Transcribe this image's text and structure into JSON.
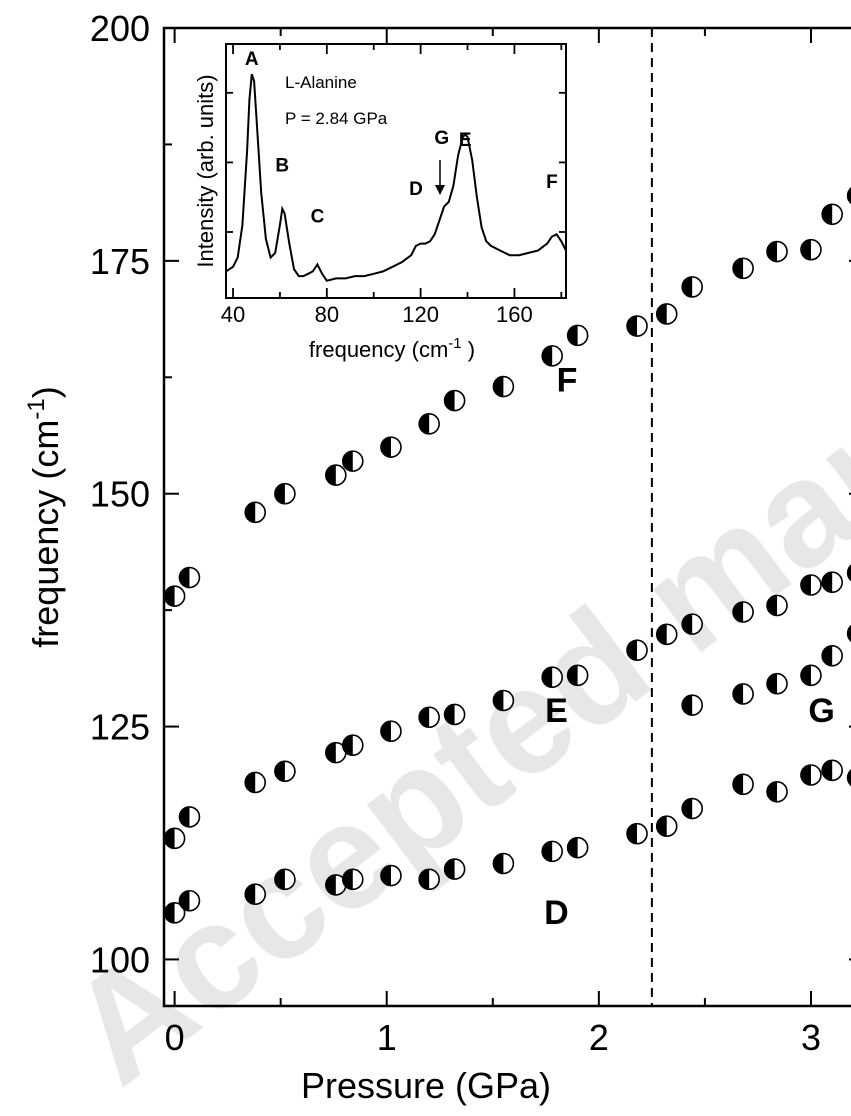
{
  "watermark": "Accepted manuscript",
  "chart_data": [
    {
      "type": "scatter",
      "xlabel": "Pressure (GPa)",
      "ylabel": "frequency (cm-1)",
      "ylabel_main": "frequency (cm",
      "ylabel_sup": "-1",
      "ylabel_close": ")",
      "xlim": [
        -0.05,
        3.25
      ],
      "ylim": [
        95,
        200
      ],
      "x_ticks": [
        0,
        1,
        2,
        3
      ],
      "y_ticks": [
        100,
        125,
        150,
        175,
        200
      ],
      "x_tick_labels": [
        "0",
        "1",
        "2",
        "3"
      ],
      "y_tick_labels": [
        "100",
        "125",
        "150",
        "175",
        "200"
      ],
      "marker": "half-filled circle",
      "phase_boundary_x": 2.25,
      "series": [
        {
          "name": "F",
          "points": [
            [
              0.0,
              139
            ],
            [
              0.07,
              141
            ],
            [
              0.38,
              148
            ],
            [
              0.52,
              150
            ],
            [
              0.76,
              152
            ],
            [
              0.84,
              153.5
            ],
            [
              1.02,
              155
            ],
            [
              1.2,
              157.5
            ],
            [
              1.32,
              160
            ],
            [
              1.55,
              161.5
            ],
            [
              1.78,
              164.8
            ],
            [
              1.9,
              167
            ],
            [
              2.18,
              168
            ],
            [
              2.32,
              169.3
            ],
            [
              2.44,
              172.2
            ],
            [
              2.68,
              174.2
            ],
            [
              2.84,
              176
            ],
            [
              3.0,
              176.2
            ],
            [
              3.1,
              180
            ],
            [
              3.22,
              182
            ]
          ]
        },
        {
          "name": "E",
          "points": [
            [
              0.0,
              113
            ],
            [
              0.07,
              115.3
            ],
            [
              0.38,
              119
            ],
            [
              0.52,
              120.2
            ],
            [
              0.76,
              122.2
            ],
            [
              0.84,
              123
            ],
            [
              1.02,
              124.5
            ],
            [
              1.2,
              126
            ],
            [
              1.32,
              126.3
            ],
            [
              1.55,
              127.8
            ],
            [
              1.78,
              130.3
            ],
            [
              1.9,
              130.5
            ],
            [
              2.18,
              133.2
            ],
            [
              2.32,
              134.9
            ],
            [
              2.44,
              136
            ],
            [
              2.68,
              137.3
            ],
            [
              2.84,
              138
            ],
            [
              3.0,
              140.2
            ],
            [
              3.1,
              140.5
            ],
            [
              3.22,
              141.5
            ]
          ]
        },
        {
          "name": "G",
          "points": [
            [
              2.44,
              127.3
            ],
            [
              2.68,
              128.5
            ],
            [
              2.84,
              129.6
            ],
            [
              3.0,
              130.5
            ],
            [
              3.1,
              132.6
            ],
            [
              3.22,
              135
            ]
          ]
        },
        {
          "name": "D",
          "points": [
            [
              0.0,
              105
            ],
            [
              0.07,
              106.3
            ],
            [
              0.38,
              107
            ],
            [
              0.52,
              108.6
            ],
            [
              0.76,
              108
            ],
            [
              0.84,
              108.6
            ],
            [
              1.02,
              109
            ],
            [
              1.2,
              108.6
            ],
            [
              1.32,
              109.7
            ],
            [
              1.55,
              110.3
            ],
            [
              1.78,
              111.6
            ],
            [
              1.9,
              112
            ],
            [
              2.18,
              113.5
            ],
            [
              2.32,
              114.3
            ],
            [
              2.44,
              116.2
            ],
            [
              2.68,
              118.8
            ],
            [
              2.84,
              118
            ],
            [
              3.0,
              119.8
            ],
            [
              3.1,
              120.3
            ],
            [
              3.22,
              119.5
            ]
          ]
        }
      ],
      "series_labels": [
        {
          "text": "F",
          "x": 1.85,
          "y": 161
        },
        {
          "text": "E",
          "x": 1.8,
          "y": 125.5
        },
        {
          "text": "G",
          "x": 3.05,
          "y": 125.5
        },
        {
          "text": "D",
          "x": 1.8,
          "y": 103.8
        }
      ]
    },
    {
      "type": "line",
      "inset": true,
      "xlabel": "frequency (cm-1 )",
      "xlabel_main": "frequency (cm",
      "xlabel_sup": "-1",
      "xlabel_close": " )",
      "ylabel": "Intensity (arb. units)",
      "xlim": [
        37,
        182
      ],
      "ylim": [
        0,
        1
      ],
      "x_ticks": [
        40,
        80,
        120,
        160
      ],
      "x_tick_labels": [
        "40",
        "80",
        "120",
        "160"
      ],
      "annotations": [
        "L-Alanine",
        "P = 2.84 GPa"
      ],
      "peaks": [
        {
          "label": "A",
          "x": 48,
          "y": 0.97
        },
        {
          "label": "B",
          "x": 61,
          "y": 0.51
        },
        {
          "label": "C",
          "x": 76,
          "y": 0.29
        },
        {
          "label": "D",
          "x": 118,
          "y": 0.41
        },
        {
          "label": "G",
          "x": 129,
          "y": 0.63
        },
        {
          "label": "E",
          "x": 139,
          "y": 0.62
        },
        {
          "label": "F",
          "x": 176,
          "y": 0.44
        }
      ],
      "x": [
        37,
        40,
        42,
        44,
        46,
        47,
        48,
        49,
        50,
        52,
        54,
        56,
        58,
        60,
        61,
        62,
        64,
        66,
        68,
        70,
        72,
        74,
        76,
        78,
        80,
        84,
        88,
        92,
        96,
        100,
        104,
        108,
        112,
        116,
        118,
        120,
        122,
        124,
        126,
        128,
        130,
        132,
        134,
        136,
        138,
        139,
        140,
        142,
        144,
        146,
        148,
        150,
        154,
        158,
        162,
        166,
        170,
        174,
        176,
        178,
        180,
        182
      ],
      "y": [
        0.08,
        0.1,
        0.14,
        0.28,
        0.6,
        0.82,
        0.93,
        0.9,
        0.74,
        0.42,
        0.22,
        0.14,
        0.16,
        0.28,
        0.35,
        0.33,
        0.2,
        0.09,
        0.06,
        0.06,
        0.07,
        0.08,
        0.11,
        0.07,
        0.04,
        0.05,
        0.05,
        0.06,
        0.06,
        0.07,
        0.08,
        0.1,
        0.12,
        0.15,
        0.19,
        0.2,
        0.2,
        0.21,
        0.24,
        0.3,
        0.36,
        0.38,
        0.45,
        0.58,
        0.66,
        0.67,
        0.66,
        0.56,
        0.4,
        0.27,
        0.21,
        0.19,
        0.17,
        0.15,
        0.15,
        0.16,
        0.17,
        0.2,
        0.23,
        0.24,
        0.21,
        0.17
      ]
    }
  ]
}
